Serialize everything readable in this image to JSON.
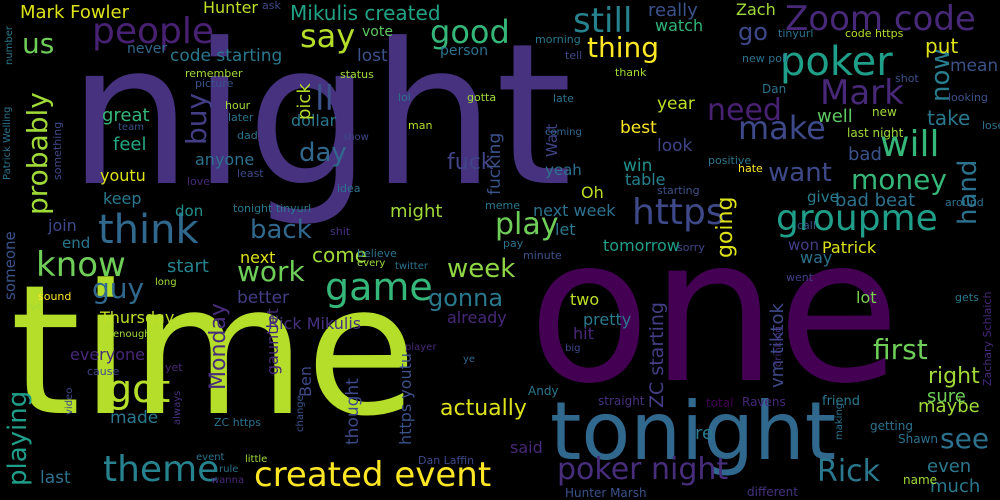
{
  "words": [
    {
      "text": "night",
      "color": "#46327e"
    },
    {
      "text": "one",
      "color": "#440154"
    },
    {
      "text": "time",
      "color": "#b5de2b"
    },
    {
      "text": "tonight",
      "color": "#31688e"
    },
    {
      "text": "Zoom code",
      "color": "#482878"
    },
    {
      "text": "poker",
      "color": "#1f9e89"
    },
    {
      "text": "people",
      "color": "#482173"
    },
    {
      "text": "good",
      "color": "#35b779"
    },
    {
      "text": "still",
      "color": "#26828e"
    },
    {
      "text": "say",
      "color": "#b5de2b"
    },
    {
      "text": "us",
      "color": "#6ece58"
    },
    {
      "text": "thing",
      "color": "#fde725"
    },
    {
      "text": "go",
      "color": "#3e4989"
    },
    {
      "text": "Mark Fowler",
      "color": "#dde318"
    },
    {
      "text": "Hunter",
      "color": "#bddf26"
    },
    {
      "text": "Mikulis created",
      "color": "#20a386"
    },
    {
      "text": "really",
      "color": "#3b528b"
    },
    {
      "text": "Zach",
      "color": "#a0da39"
    },
    {
      "text": "watch",
      "color": "#31b57b"
    },
    {
      "text": "code starting",
      "color": "#2a788e"
    },
    {
      "text": "person",
      "color": "#2c728e"
    },
    {
      "text": "lost",
      "color": "#3b528b"
    },
    {
      "text": "vote",
      "color": "#5ec962"
    },
    {
      "text": "never",
      "color": "#31688e"
    },
    {
      "text": "probably",
      "color": "#a0da39"
    },
    {
      "text": "think",
      "color": "#31688e"
    },
    {
      "text": "https",
      "color": "#3e4989"
    },
    {
      "text": "groupme",
      "color": "#1f9e89"
    },
    {
      "text": "will",
      "color": "#35b779"
    },
    {
      "text": "make",
      "color": "#3e4989"
    },
    {
      "text": "Mark",
      "color": "#482878"
    },
    {
      "text": "need",
      "color": "#482173"
    },
    {
      "text": "now",
      "color": "#287c8e"
    },
    {
      "text": "put",
      "color": "#dde318"
    },
    {
      "text": "mean",
      "color": "#3b528b"
    },
    {
      "text": "know",
      "color": "#6ece58"
    },
    {
      "text": "back",
      "color": "#31688e"
    },
    {
      "text": "play",
      "color": "#6ece58"
    },
    {
      "text": "game",
      "color": "#35b779"
    },
    {
      "text": "want",
      "color": "#3e4989"
    },
    {
      "text": "money",
      "color": "#35b779"
    },
    {
      "text": "day",
      "color": "#31688e"
    },
    {
      "text": "buy",
      "color": "#433e85"
    },
    {
      "text": "week",
      "color": "#8fd744"
    },
    {
      "text": "gonna",
      "color": "#2a788e"
    },
    {
      "text": "guy",
      "color": "#31688e"
    },
    {
      "text": "got",
      "color": "#b5de2b"
    },
    {
      "text": "work",
      "color": "#6ece58"
    },
    {
      "text": "hand",
      "color": "#2c728e"
    },
    {
      "text": "going",
      "color": "#dde318"
    },
    {
      "text": "first",
      "color": "#6ece58"
    },
    {
      "text": "right",
      "color": "#a0da39"
    },
    {
      "text": "see",
      "color": "#2c728e"
    },
    {
      "text": "theme",
      "color": "#26828e"
    },
    {
      "text": "created event",
      "color": "#fde725"
    },
    {
      "text": "Rick",
      "color": "#2a788e"
    },
    {
      "text": "poker night",
      "color": "#472d7b"
    },
    {
      "text": "actually",
      "color": "#dde318"
    },
    {
      "text": "playing",
      "color": "#1f9e89"
    },
    {
      "text": "Monday",
      "color": "#472d7b"
    },
    {
      "text": "Thursday",
      "color": "#bddf26"
    },
    {
      "text": "fuck",
      "color": "#414487"
    },
    {
      "text": "fucking",
      "color": "#3b528b"
    },
    {
      "text": "start",
      "color": "#26828e"
    },
    {
      "text": "come",
      "color": "#a0da39"
    },
    {
      "text": "great",
      "color": "#35b779"
    },
    {
      "text": "feel",
      "color": "#22a884"
    },
    {
      "text": "youtu",
      "color": "#dde318"
    },
    {
      "text": "keep",
      "color": "#2a788e"
    },
    {
      "text": "don",
      "color": "#21918c"
    },
    {
      "text": "anyone",
      "color": "#2c728e"
    },
    {
      "text": "ll",
      "color": "#3b528b"
    },
    {
      "text": "dollar",
      "color": "#2a788e"
    },
    {
      "text": "pick",
      "color": "#b5de2b"
    },
    {
      "text": "well",
      "color": "#5ec962"
    },
    {
      "text": "take",
      "color": "#2a788e"
    },
    {
      "text": "bad",
      "color": "#3b528b"
    },
    {
      "text": "bad beat",
      "color": "#2c728e"
    },
    {
      "text": "give",
      "color": "#287c8e"
    },
    {
      "text": "best",
      "color": "#fde725"
    },
    {
      "text": "year",
      "color": "#bddf26"
    },
    {
      "text": "look",
      "color": "#414487"
    },
    {
      "text": "win",
      "color": "#21918c"
    },
    {
      "text": "table",
      "color": "#26828e"
    },
    {
      "text": "Oh",
      "color": "#bddf26"
    },
    {
      "text": "yeah",
      "color": "#2c728e"
    },
    {
      "text": "Wait",
      "color": "#414487"
    },
    {
      "text": "next week",
      "color": "#2c728e"
    },
    {
      "text": "might",
      "color": "#a0da39"
    },
    {
      "text": "let",
      "color": "#2a788e"
    },
    {
      "text": "tomorrow",
      "color": "#1f9e89"
    },
    {
      "text": "two",
      "color": "#bddf26"
    },
    {
      "text": "pretty",
      "color": "#2a788e"
    },
    {
      "text": "hit",
      "color": "#482878"
    },
    {
      "text": "already",
      "color": "#482878"
    },
    {
      "text": "join",
      "color": "#3e4989"
    },
    {
      "text": "end",
      "color": "#2a788e"
    },
    {
      "text": "next",
      "color": "#dde318"
    },
    {
      "text": "better",
      "color": "#433e85"
    },
    {
      "text": "Rick Mikulis",
      "color": "#46327e"
    },
    {
      "text": "everyone",
      "color": "#482878"
    },
    {
      "text": "made",
      "color": "#2a788e"
    },
    {
      "text": "gauntlet",
      "color": "#482878"
    },
    {
      "text": "Ben",
      "color": "#3e4989"
    },
    {
      "text": "thought",
      "color": "#3e4989"
    },
    {
      "text": "https youtu",
      "color": "#3b528b"
    },
    {
      "text": "ZC starting",
      "color": "#433e85"
    },
    {
      "text": "vm tiktok",
      "color": "#3e4989"
    },
    {
      "text": "Patrick",
      "color": "#dde318"
    },
    {
      "text": "lot",
      "color": "#7ad151"
    },
    {
      "text": "way",
      "color": "#2c728e"
    },
    {
      "text": "won",
      "color": "#433e85"
    },
    {
      "text": "maybe",
      "color": "#a0da39"
    },
    {
      "text": "sure",
      "color": "#6ece58"
    },
    {
      "text": "even",
      "color": "#2a788e"
    },
    {
      "text": "much",
      "color": "#2a788e"
    },
    {
      "text": "said",
      "color": "#482878"
    },
    {
      "text": "last",
      "color": "#2c728e"
    },
    {
      "text": "re",
      "color": "#2a788e"
    },
    {
      "text": "Dan Laffin",
      "color": "#3e4989"
    },
    {
      "text": "Hunter Marsh",
      "color": "#3b528b"
    },
    {
      "text": "straight",
      "color": "#46327e"
    },
    {
      "text": "total",
      "color": "#440154"
    },
    {
      "text": "Ravens",
      "color": "#482878"
    },
    {
      "text": "friend",
      "color": "#2a788e"
    },
    {
      "text": "getting",
      "color": "#2c728e"
    },
    {
      "text": "Shawn",
      "color": "#2c728e"
    },
    {
      "text": "name",
      "color": "#a0da39"
    },
    {
      "text": "different",
      "color": "#46327e"
    },
    {
      "text": "Andy",
      "color": "#2a788e"
    },
    {
      "text": "Zachary Schlaich",
      "color": "#482878"
    },
    {
      "text": "gets",
      "color": "#2a788e"
    },
    {
      "text": "went",
      "color": "#433e85"
    },
    {
      "text": "minute",
      "color": "#3b528b"
    },
    {
      "text": "sorry",
      "color": "#3e4989"
    },
    {
      "text": "pay",
      "color": "#2c728e"
    },
    {
      "text": "believe",
      "color": "#2c728e"
    },
    {
      "text": "meme",
      "color": "#2a788e"
    },
    {
      "text": "call",
      "color": "#3b528b"
    },
    {
      "text": "around",
      "color": "#2c728e"
    },
    {
      "text": "positive",
      "color": "#2a788e"
    },
    {
      "text": "hate",
      "color": "#fde725"
    },
    {
      "text": "starting",
      "color": "#3b528b"
    },
    {
      "text": "last night",
      "color": "#a0da39"
    },
    {
      "text": "new",
      "color": "#a0da39"
    },
    {
      "text": "Dan",
      "color": "#2c728e"
    },
    {
      "text": "new poll",
      "color": "#2c728e"
    },
    {
      "text": "tinyurl",
      "color": "#2c728e"
    },
    {
      "text": "code https",
      "color": "#b5de2b"
    },
    {
      "text": "thank",
      "color": "#a0da39"
    },
    {
      "text": "shot",
      "color": "#3b528b"
    },
    {
      "text": "looking",
      "color": "#3b528b"
    },
    {
      "text": "lose",
      "color": "#2c728e"
    },
    {
      "text": "morning",
      "color": "#2a788e"
    },
    {
      "text": "tell",
      "color": "#3e4989"
    },
    {
      "text": "gotta",
      "color": "#a0da39"
    },
    {
      "text": "late",
      "color": "#2c728e"
    },
    {
      "text": "lol",
      "color": "#2c728e"
    },
    {
      "text": "man",
      "color": "#b5de2b"
    },
    {
      "text": "coming",
      "color": "#31688e"
    },
    {
      "text": "hour",
      "color": "#a0da39"
    },
    {
      "text": "later",
      "color": "#2c728e"
    },
    {
      "text": "picture",
      "color": "#3b528b"
    },
    {
      "text": "remember",
      "color": "#a0da39"
    },
    {
      "text": "status",
      "color": "#a0da39"
    },
    {
      "text": "show",
      "color": "#3e4989"
    },
    {
      "text": "idea",
      "color": "#2c728e"
    },
    {
      "text": "dad",
      "color": "#2c728e"
    },
    {
      "text": "least",
      "color": "#3e4989"
    },
    {
      "text": "love",
      "color": "#482878"
    },
    {
      "text": "tonight tinyurl",
      "color": "#2a788e"
    },
    {
      "text": "shit",
      "color": "#46327e"
    },
    {
      "text": "every",
      "color": "#a0da39"
    },
    {
      "text": "twitter",
      "color": "#2c728e"
    },
    {
      "text": "player",
      "color": "#482878"
    },
    {
      "text": "ye",
      "color": "#31688e"
    },
    {
      "text": "big",
      "color": "#3e4989"
    },
    {
      "text": "drinking",
      "color": "#46327e"
    },
    {
      "text": "making",
      "color": "#2c728e"
    },
    {
      "text": "cause",
      "color": "#3e4989"
    },
    {
      "text": "yet",
      "color": "#482878"
    },
    {
      "text": "always",
      "color": "#46327e"
    },
    {
      "text": "video",
      "color": "#3e4989"
    },
    {
      "text": "enough",
      "color": "#a0da39"
    },
    {
      "text": "ZC https",
      "color": "#2c728e"
    },
    {
      "text": "change",
      "color": "#3b528b"
    },
    {
      "text": "event",
      "color": "#2c728e"
    },
    {
      "text": "little",
      "color": "#a0da39"
    },
    {
      "text": "rule",
      "color": "#2c728e"
    },
    {
      "text": "wanna",
      "color": "#482878"
    },
    {
      "text": "sound",
      "color": "#fde725"
    },
    {
      "text": "ve",
      "color": "#a0da39"
    },
    {
      "text": "long",
      "color": "#a0da39"
    },
    {
      "text": "team",
      "color": "#3b528b"
    },
    {
      "text": "someone",
      "color": "#3b528b"
    },
    {
      "text": "something",
      "color": "#3e4989"
    },
    {
      "text": "Patrick Welling",
      "color": "#2c728e"
    },
    {
      "text": "number",
      "color": "#2a788e"
    },
    {
      "text": "ask",
      "color": "#3e4989"
    }
  ]
}
